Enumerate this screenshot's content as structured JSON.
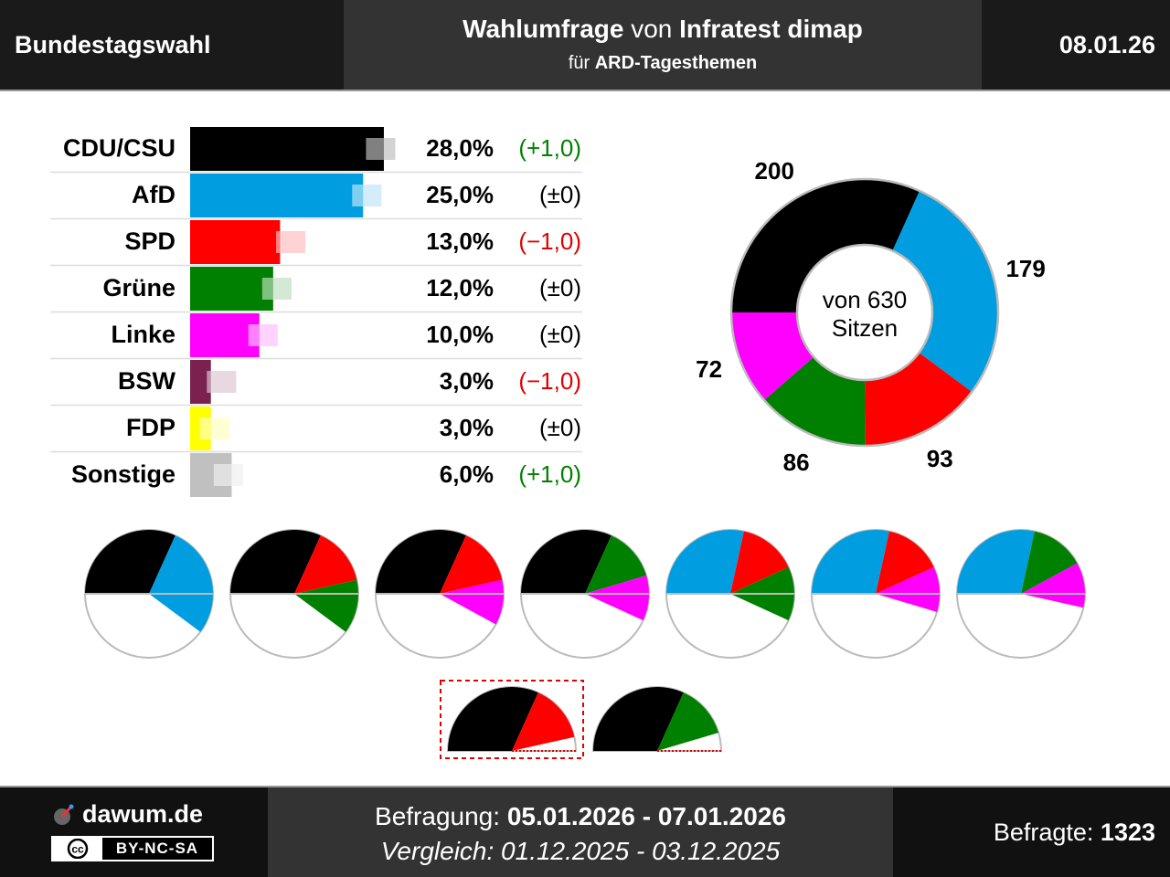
{
  "header": {
    "left": "Bundestagswahl",
    "title": [
      "Wahlumfrage",
      "von",
      "Infratest dimap"
    ],
    "subtitle": [
      "für",
      "ARD-Tagesthemen"
    ],
    "date": "08.01.26"
  },
  "chart_data": [
    {
      "type": "bar",
      "categories": [
        "CDU/CSU",
        "AfD",
        "SPD",
        "Grüne",
        "Linke",
        "BSW",
        "FDP",
        "Sonstige"
      ],
      "values": [
        28,
        25,
        13,
        12,
        10,
        3,
        3,
        6
      ],
      "value_labels": [
        "28,0%",
        "25,0%",
        "13,0%",
        "12,0%",
        "10,0%",
        "3,0%",
        "3,0%",
        "6,0%"
      ],
      "previous_values": [
        27,
        25,
        14,
        12,
        10,
        4,
        3,
        5
      ],
      "changes": [
        1,
        0,
        -1,
        0,
        0,
        -1,
        0,
        1
      ],
      "change_labels": [
        "(+1,0)",
        "(±0)",
        "(−1,0)",
        "(±0)",
        "(±0)",
        "(−1,0)",
        "(±0)",
        "(+1,0)"
      ],
      "colors": [
        "#000000",
        "#009ee0",
        "#ff0000",
        "#008000",
        "#ff00ff",
        "#7a2150",
        "#ffff00",
        "#c0c0c0"
      ]
    },
    {
      "type": "donut",
      "values": [
        200,
        179,
        93,
        86,
        72
      ],
      "colors": [
        "#000000",
        "#009ee0",
        "#ff0000",
        "#008000",
        "#ff00ff"
      ],
      "center_label": [
        "von 630",
        "Sitzen"
      ]
    },
    {
      "type": "coalition-pies",
      "pies": [
        {
          "values": [
            200,
            179
          ],
          "colors": [
            "#000000",
            "#009ee0"
          ]
        },
        {
          "values": [
            200,
            93,
            86
          ],
          "colors": [
            "#000000",
            "#ff0000",
            "#008000"
          ]
        },
        {
          "values": [
            200,
            93,
            72
          ],
          "colors": [
            "#000000",
            "#ff0000",
            "#ff00ff"
          ]
        },
        {
          "values": [
            200,
            86,
            72
          ],
          "colors": [
            "#000000",
            "#008000",
            "#ff00ff"
          ]
        },
        {
          "values": [
            179,
            93,
            86
          ],
          "colors": [
            "#009ee0",
            "#ff0000",
            "#008000"
          ]
        },
        {
          "values": [
            179,
            93,
            72
          ],
          "colors": [
            "#009ee0",
            "#ff0000",
            "#ff00ff"
          ]
        },
        {
          "values": [
            179,
            86,
            72
          ],
          "colors": [
            "#009ee0",
            "#008000",
            "#ff00ff"
          ]
        },
        {
          "values": [
            200,
            93
          ],
          "colors": [
            "#000000",
            "#ff0000"
          ],
          "half": true,
          "highlight": true
        },
        {
          "values": [
            200,
            86
          ],
          "colors": [
            "#000000",
            "#008000"
          ],
          "half": true,
          "highlight": false
        }
      ]
    }
  ],
  "footer": {
    "site": "dawum.de",
    "license": "BY-NC-SA",
    "survey": [
      "Befragung:",
      "05.01.2026 - 07.01.2026"
    ],
    "comparison": "Vergleich: 01.12.2025 - 03.12.2025",
    "respondents": [
      "Befragte:",
      "1323"
    ]
  }
}
